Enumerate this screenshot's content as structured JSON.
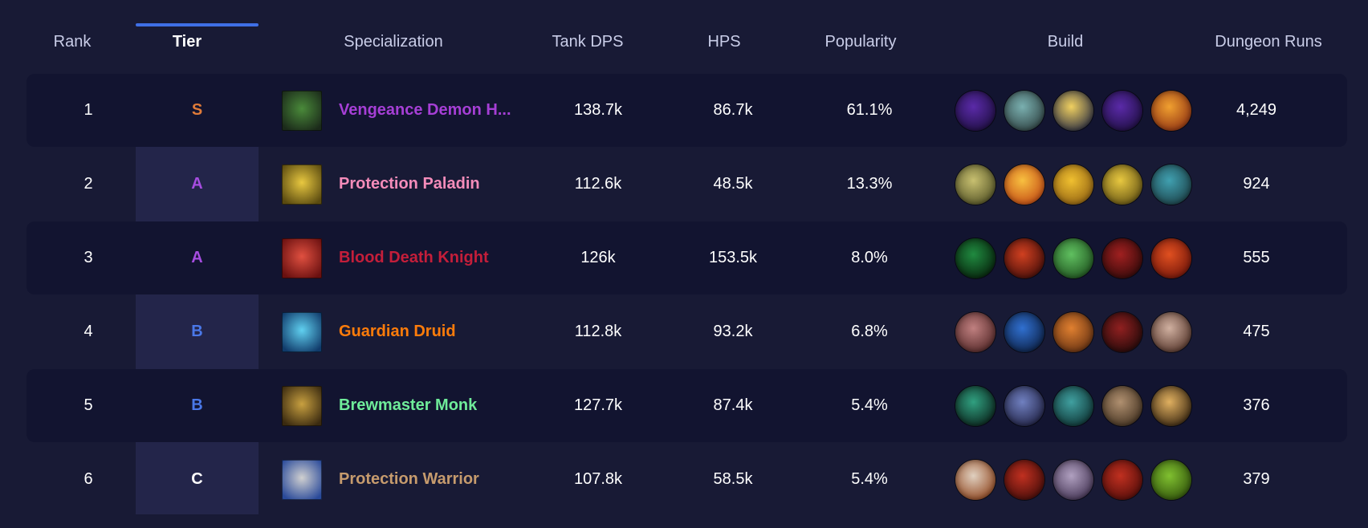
{
  "header": {
    "rank": "Rank",
    "tier": "Tier",
    "specialization": "Specialization",
    "tank_dps": "Tank DPS",
    "hps": "HPS",
    "popularity": "Popularity",
    "build": "Build",
    "dungeon_runs": "Dungeon Runs"
  },
  "colors": {
    "tier_S": "#e07b39",
    "tier_A": "#a64de0",
    "tier_B": "#4a78e8",
    "tier_C": "#ffffff",
    "accent": "#3f6fe6"
  },
  "rows": [
    {
      "rank": "1",
      "tier": "S",
      "tier_color": "#e07b39",
      "spec": "Vengeance Demon H...",
      "spec_color": "#a63fd6",
      "spec_icon": "demon-hunter-spec-icon",
      "spec_icon_colors": [
        "#4a8a3a",
        "#1b2a1a"
      ],
      "tank_dps": "138.7k",
      "hps": "86.7k",
      "popularity": "61.1%",
      "build_icons": [
        {
          "name": "void-orb-icon",
          "colors": [
            "#5a2aa8",
            "#1a0d3a"
          ]
        },
        {
          "name": "skull-icon",
          "colors": [
            "#7ab0b0",
            "#2a3a3a"
          ]
        },
        {
          "name": "lightning-icon",
          "colors": [
            "#f0d060",
            "#1a2040"
          ]
        },
        {
          "name": "void-orb-icon",
          "colors": [
            "#5a2aa8",
            "#1a0d3a"
          ]
        },
        {
          "name": "fire-icon",
          "colors": [
            "#f0a030",
            "#8a2a10"
          ]
        }
      ],
      "dungeon_runs": "4,249"
    },
    {
      "rank": "2",
      "tier": "A",
      "tier_color": "#a64de0",
      "spec": "Protection Paladin",
      "spec_color": "#f48cba",
      "spec_icon": "paladin-spec-icon",
      "spec_icon_colors": [
        "#e8c840",
        "#5a4a10"
      ],
      "tank_dps": "112.6k",
      "hps": "48.5k",
      "popularity": "13.3%",
      "build_icons": [
        {
          "name": "lion-icon",
          "colors": [
            "#c8c070",
            "#4a4a20"
          ]
        },
        {
          "name": "flame-pillar-icon",
          "colors": [
            "#f8c040",
            "#c04010"
          ]
        },
        {
          "name": "holy-army-icon",
          "colors": [
            "#f0c030",
            "#8a5a10"
          ]
        },
        {
          "name": "golden-helm-icon",
          "colors": [
            "#e8c840",
            "#5a4a10"
          ]
        },
        {
          "name": "rune-ring-icon",
          "colors": [
            "#40a0b0",
            "#1a3a40"
          ]
        }
      ],
      "dungeon_runs": "924"
    },
    {
      "rank": "3",
      "tier": "A",
      "tier_color": "#a64de0",
      "spec": "Blood Death Knight",
      "spec_color": "#c41e3a",
      "spec_icon": "death-knight-spec-icon",
      "spec_icon_colors": [
        "#e05040",
        "#6a1010"
      ],
      "tank_dps": "126k",
      "hps": "153.5k",
      "popularity": "8.0%",
      "build_icons": [
        {
          "name": "dark-portal-icon",
          "colors": [
            "#208a40",
            "#051a08"
          ]
        },
        {
          "name": "red-skull-icon",
          "colors": [
            "#d04020",
            "#3a0a08"
          ]
        },
        {
          "name": "green-skull-icon",
          "colors": [
            "#60c060",
            "#1a4a1a"
          ]
        },
        {
          "name": "blood-claw-icon",
          "colors": [
            "#a02020",
            "#2a0808"
          ]
        },
        {
          "name": "heart-icon",
          "colors": [
            "#e05020",
            "#6a1008"
          ]
        }
      ],
      "dungeon_runs": "555"
    },
    {
      "rank": "4",
      "tier": "B",
      "tier_color": "#4a78e8",
      "spec": "Guardian Druid",
      "spec_color": "#ff7c0a",
      "spec_icon": "bear-paw-spec-icon",
      "spec_icon_colors": [
        "#60d0f0",
        "#103a6a"
      ],
      "tank_dps": "112.8k",
      "hps": "93.2k",
      "popularity": "6.8%",
      "build_icons": [
        {
          "name": "claw-icon",
          "colors": [
            "#c08080",
            "#4a2020"
          ]
        },
        {
          "name": "blue-beast-icon",
          "colors": [
            "#3070d0",
            "#0a1a3a"
          ]
        },
        {
          "name": "gauntlet-icon",
          "colors": [
            "#e08030",
            "#5a2a10"
          ]
        },
        {
          "name": "dark-bear-icon",
          "colors": [
            "#902020",
            "#1a0808"
          ]
        },
        {
          "name": "fang-icon",
          "colors": [
            "#d0b0a0",
            "#4a2a20"
          ]
        }
      ],
      "dungeon_runs": "475"
    },
    {
      "rank": "5",
      "tier": "B",
      "tier_color": "#4a78e8",
      "spec": "Brewmaster Monk",
      "spec_color": "#6fec9a",
      "spec_icon": "brewmaster-spec-icon",
      "spec_icon_colors": [
        "#c8a040",
        "#3a2a10"
      ],
      "tank_dps": "127.7k",
      "hps": "87.4k",
      "popularity": "5.4%",
      "build_icons": [
        {
          "name": "swirl-icon",
          "colors": [
            "#30a080",
            "#081a14"
          ]
        },
        {
          "name": "monk-kick-icon",
          "colors": [
            "#7080c0",
            "#1a1a3a"
          ]
        },
        {
          "name": "jade-serpent-icon",
          "colors": [
            "#40a0a0",
            "#0a2a2a"
          ]
        },
        {
          "name": "keg-icon",
          "colors": [
            "#b09070",
            "#3a2a1a"
          ]
        },
        {
          "name": "fist-icon",
          "colors": [
            "#e0b060",
            "#2a1a0a"
          ]
        }
      ],
      "dungeon_runs": "376"
    },
    {
      "rank": "6",
      "tier": "C",
      "tier_color": "#ffffff",
      "spec": "Protection Warrior",
      "spec_color": "#c69b6d",
      "spec_icon": "shield-spec-icon",
      "spec_icon_colors": [
        "#d0d0d0",
        "#2a4a9a"
      ],
      "tank_dps": "107.8k",
      "hps": "58.5k",
      "popularity": "5.4%",
      "build_icons": [
        {
          "name": "shield-icon",
          "colors": [
            "#e0d0c0",
            "#8a3a10"
          ]
        },
        {
          "name": "red-slash-icon",
          "colors": [
            "#c03020",
            "#3a0a08"
          ]
        },
        {
          "name": "warrior-face-icon",
          "colors": [
            "#b0a0c0",
            "#3a2a4a"
          ]
        },
        {
          "name": "red-titan-icon",
          "colors": [
            "#c03020",
            "#4a0a08"
          ]
        },
        {
          "name": "green-orc-icon",
          "colors": [
            "#80c030",
            "#2a4a08"
          ]
        }
      ],
      "dungeon_runs": "379"
    }
  ]
}
